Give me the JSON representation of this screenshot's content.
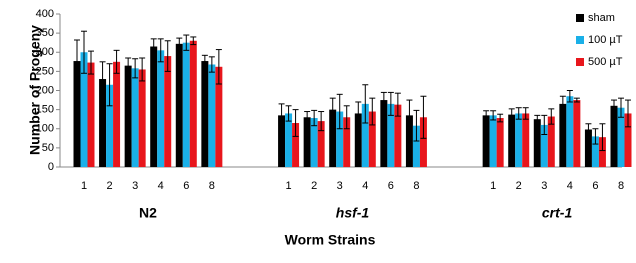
{
  "chart_data": {
    "type": "bar",
    "y_label": "Number of Progeny",
    "x_label": "Worm Strains",
    "categories": [
      "1",
      "2",
      "3",
      "4",
      "6",
      "8",
      null,
      null,
      "1",
      "2",
      "3",
      "4",
      "6",
      "8",
      null,
      null,
      "1",
      "2",
      "3",
      "4",
      "6",
      "8"
    ],
    "groups": [
      "N2",
      "hsf-1",
      "crt-1"
    ],
    "series": [
      {
        "name": "sham",
        "color": "#000000",
        "values": [
          277,
          230,
          265,
          315,
          322,
          277,
          null,
          null,
          135,
          130,
          150,
          140,
          175,
          135,
          null,
          null,
          135,
          137,
          125,
          165,
          98,
          160
        ],
        "errors": [
          55,
          45,
          20,
          20,
          15,
          15,
          null,
          null,
          30,
          15,
          30,
          30,
          20,
          40,
          null,
          null,
          12,
          15,
          10,
          20,
          15,
          15
        ]
      },
      {
        "name": "100 µT",
        "color": "#1ab0e8",
        "values": [
          300,
          215,
          258,
          305,
          325,
          268,
          null,
          null,
          140,
          128,
          145,
          165,
          165,
          108,
          null,
          null,
          135,
          140,
          110,
          185,
          80,
          155
        ],
        "errors": [
          55,
          55,
          25,
          30,
          20,
          20,
          null,
          null,
          20,
          20,
          45,
          50,
          30,
          40,
          null,
          null,
          12,
          15,
          25,
          15,
          20,
          25
        ]
      },
      {
        "name": "500 µT",
        "color": "#e8161c",
        "values": [
          273,
          275,
          255,
          290,
          330,
          262,
          null,
          null,
          115,
          120,
          130,
          145,
          163,
          130,
          null,
          null,
          128,
          140,
          132,
          175,
          78,
          140
        ],
        "errors": [
          30,
          30,
          30,
          40,
          10,
          45,
          null,
          null,
          35,
          25,
          30,
          35,
          30,
          55,
          null,
          null,
          10,
          15,
          20,
          5,
          35,
          35
        ]
      }
    ],
    "ylim": [
      0,
      400
    ],
    "yticks": [
      0,
      50,
      100,
      150,
      200,
      250,
      300,
      350,
      400
    ],
    "legend": "top-right"
  }
}
